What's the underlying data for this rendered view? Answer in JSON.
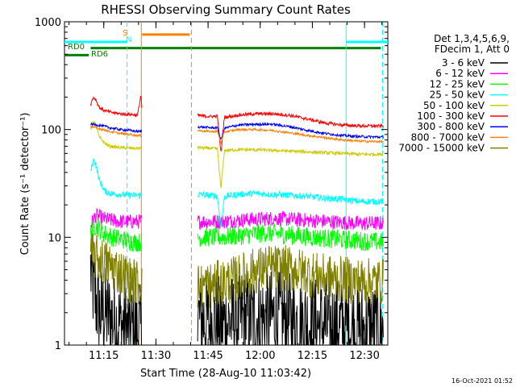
{
  "chart_data": {
    "type": "line",
    "title": "RHESSI Observing Summary Count Rates",
    "xlabel": "Start Time (28-Aug-10 11:03:42)",
    "ylabel": "Count Rate (s⁻¹ detector⁻¹)",
    "ylim": [
      1,
      1000
    ],
    "yscale": "log",
    "xlim_minutes": [
      0,
      93
    ],
    "x_ticks": [
      {
        "min": 11.3,
        "label": "11:15"
      },
      {
        "min": 26.3,
        "label": "11:30"
      },
      {
        "min": 41.3,
        "label": "11:45"
      },
      {
        "min": 56.3,
        "label": "12:00"
      },
      {
        "min": 71.3,
        "label": "12:15"
      },
      {
        "min": 86.3,
        "label": "12:30"
      }
    ],
    "y_ticks": [
      {
        "value": 1,
        "label": "1"
      },
      {
        "value": 10,
        "label": "10"
      },
      {
        "value": 100,
        "label": "100"
      },
      {
        "value": 1000,
        "label": "1000"
      }
    ],
    "legend_header": [
      "Det 1,3,4,5,6,9,",
      "FDecim 1, Att 0"
    ],
    "legend_position": "right",
    "timestamp": "16-Oct-2021 01:52",
    "flag_labels": {
      "rd0": "RD0",
      "rd6": "RD6",
      "saa": "S",
      "night": "N"
    },
    "data_gaps_minutes": [
      [
        22.5,
        38.2
      ]
    ],
    "segments_minutes": [
      [
        7.5,
        22.3
      ],
      [
        38.3,
        91.7
      ]
    ],
    "series": [
      {
        "name": "3 - 6 keV",
        "color": "#000000",
        "noise": 0.45,
        "points": [
          [
            7.5,
            5
          ],
          [
            8.5,
            3
          ],
          [
            10,
            2
          ],
          [
            11.5,
            2
          ],
          [
            13,
            1.8
          ],
          [
            15,
            1.6
          ],
          [
            17,
            1.5
          ],
          [
            19,
            1.4
          ],
          [
            21,
            1.3
          ],
          [
            22.3,
            1.3
          ],
          [
            38.3,
            1.8
          ],
          [
            42,
            1.6
          ],
          [
            46,
            1.6
          ],
          [
            50,
            1.7
          ],
          [
            55,
            1.8
          ],
          [
            60,
            1.8
          ],
          [
            65,
            1.7
          ],
          [
            70,
            1.6
          ],
          [
            75,
            1.5
          ],
          [
            80,
            1.5
          ],
          [
            85,
            1.4
          ],
          [
            91.7,
            1.4
          ]
        ]
      },
      {
        "name": "6 - 12 keV",
        "color": "#ff00ff",
        "noise": 0.07,
        "points": [
          [
            7.5,
            13
          ],
          [
            9,
            16
          ],
          [
            11,
            15
          ],
          [
            13,
            14.5
          ],
          [
            16,
            14
          ],
          [
            19,
            14
          ],
          [
            22.3,
            14
          ],
          [
            38.3,
            14
          ],
          [
            45,
            14
          ],
          [
            52,
            14.5
          ],
          [
            60,
            15
          ],
          [
            68,
            14.5
          ],
          [
            76,
            14
          ],
          [
            84,
            13.5
          ],
          [
            91.7,
            13.5
          ]
        ]
      },
      {
        "name": "12 - 25 keV",
        "color": "#00ff00",
        "noise": 0.09,
        "points": [
          [
            7.5,
            11
          ],
          [
            9,
            13
          ],
          [
            11,
            11
          ],
          [
            14,
            10
          ],
          [
            17,
            9.5
          ],
          [
            20,
            9
          ],
          [
            22.3,
            9
          ],
          [
            38.3,
            10
          ],
          [
            45,
            10
          ],
          [
            52,
            10.5
          ],
          [
            58,
            11
          ],
          [
            65,
            10.5
          ],
          [
            72,
            10
          ],
          [
            80,
            9.5
          ],
          [
            91.7,
            9
          ]
        ]
      },
      {
        "name": "25 - 50 keV",
        "color": "#00ffff",
        "noise": 0.03,
        "points": [
          [
            7.5,
            40
          ],
          [
            8.3,
            52
          ],
          [
            9,
            48
          ],
          [
            10,
            34
          ],
          [
            11.5,
            27
          ],
          [
            13,
            25.5
          ],
          [
            16,
            25
          ],
          [
            19,
            24.5
          ],
          [
            22.3,
            24.5
          ],
          [
            38.3,
            25
          ],
          [
            42,
            24.5
          ],
          [
            44,
            24
          ],
          [
            45,
            12
          ],
          [
            46,
            24
          ],
          [
            50,
            25
          ],
          [
            55,
            25.5
          ],
          [
            60,
            25
          ],
          [
            65,
            24.5
          ],
          [
            70,
            24
          ],
          [
            75,
            23
          ],
          [
            80,
            22.5
          ],
          [
            85,
            21.5
          ],
          [
            91.7,
            21.5
          ]
        ]
      },
      {
        "name": "50 - 100 keV",
        "color": "#cccc00",
        "noise": 0.015,
        "points": [
          [
            7.5,
            100
          ],
          [
            8.3,
            120
          ],
          [
            9,
            110
          ],
          [
            10,
            85
          ],
          [
            11.5,
            75
          ],
          [
            13,
            70
          ],
          [
            16,
            68
          ],
          [
            19,
            67
          ],
          [
            21,
            67
          ],
          [
            22.3,
            67
          ],
          [
            38.3,
            68
          ],
          [
            42,
            67
          ],
          [
            44,
            66
          ],
          [
            45,
            28
          ],
          [
            46,
            64
          ],
          [
            50,
            65
          ],
          [
            55,
            65
          ],
          [
            60,
            64
          ],
          [
            65,
            63
          ],
          [
            70,
            62
          ],
          [
            75,
            61
          ],
          [
            80,
            60
          ],
          [
            85,
            59
          ],
          [
            91.7,
            59
          ]
        ]
      },
      {
        "name": "100 - 300 keV",
        "color": "#ff0000",
        "noise": 0.015,
        "points": [
          [
            7.5,
            170
          ],
          [
            8.3,
            200
          ],
          [
            9,
            190
          ],
          [
            10,
            160
          ],
          [
            11.5,
            150
          ],
          [
            13,
            145
          ],
          [
            16,
            140
          ],
          [
            19,
            138
          ],
          [
            21,
            136
          ],
          [
            22,
            210
          ],
          [
            22.3,
            150
          ],
          [
            38.3,
            135
          ],
          [
            42,
            132
          ],
          [
            44,
            133
          ],
          [
            45,
            60
          ],
          [
            46,
            130
          ],
          [
            50,
            136
          ],
          [
            55,
            140
          ],
          [
            60,
            140
          ],
          [
            65,
            135
          ],
          [
            70,
            125
          ],
          [
            75,
            115
          ],
          [
            80,
            110
          ],
          [
            85,
            108
          ],
          [
            91.7,
            108
          ]
        ]
      },
      {
        "name": "300 - 800 keV",
        "color": "#0000ff",
        "noise": 0.012,
        "points": [
          [
            7.5,
            112
          ],
          [
            9,
            111
          ],
          [
            11,
            108
          ],
          [
            13,
            104
          ],
          [
            16,
            100
          ],
          [
            19,
            98
          ],
          [
            21,
            96
          ],
          [
            22.3,
            96
          ],
          [
            38.3,
            106
          ],
          [
            42,
            104
          ],
          [
            44,
            104
          ],
          [
            45,
            80
          ],
          [
            46,
            103
          ],
          [
            50,
            110
          ],
          [
            55,
            112
          ],
          [
            60,
            112
          ],
          [
            65,
            106
          ],
          [
            70,
            98
          ],
          [
            75,
            92
          ],
          [
            80,
            88
          ],
          [
            85,
            86
          ],
          [
            91.7,
            85
          ]
        ]
      },
      {
        "name": "800 - 7000 keV",
        "color": "#ff8000",
        "noise": 0.01,
        "points": [
          [
            7.5,
            106
          ],
          [
            9,
            104
          ],
          [
            11,
            100
          ],
          [
            13,
            96
          ],
          [
            16,
            92
          ],
          [
            19,
            90
          ],
          [
            21,
            88
          ],
          [
            22.3,
            88
          ],
          [
            38.3,
            98
          ],
          [
            42,
            96
          ],
          [
            44,
            96
          ],
          [
            45,
            75
          ],
          [
            46,
            95
          ],
          [
            50,
            100
          ],
          [
            55,
            100
          ],
          [
            60,
            98
          ],
          [
            65,
            93
          ],
          [
            70,
            88
          ],
          [
            75,
            84
          ],
          [
            80,
            80
          ],
          [
            85,
            78
          ],
          [
            91.7,
            77
          ]
        ]
      },
      {
        "name": "7000 - 15000 keV",
        "color": "#808000",
        "noise": 0.22,
        "points": [
          [
            7.5,
            7
          ],
          [
            9,
            6.5
          ],
          [
            11,
            6
          ],
          [
            13,
            5.5
          ],
          [
            15,
            5
          ],
          [
            17,
            4.5
          ],
          [
            19,
            4
          ],
          [
            21,
            3.8
          ],
          [
            22.3,
            3.8
          ],
          [
            38.3,
            3.5
          ],
          [
            42,
            3.6
          ],
          [
            46,
            3.8
          ],
          [
            50,
            4.2
          ],
          [
            54,
            4.8
          ],
          [
            58,
            5.2
          ],
          [
            62,
            5.2
          ],
          [
            66,
            5
          ],
          [
            70,
            4.6
          ],
          [
            74,
            4.3
          ],
          [
            78,
            4.1
          ],
          [
            82,
            4
          ],
          [
            86,
            3.9
          ],
          [
            91.7,
            3.9
          ]
        ]
      }
    ],
    "flags": [
      {
        "name": "cyan-top-left",
        "color": "#00ffff",
        "y": 650,
        "x": [
          0,
          18
        ]
      },
      {
        "name": "cyan-top-right",
        "color": "#00ffff",
        "y": 650,
        "x": [
          81,
          93
        ]
      },
      {
        "name": "orange-flag",
        "color": "#ff8000",
        "y": 760,
        "x": [
          22.3,
          36
        ]
      },
      {
        "name": "rd0-flag",
        "color": "#008000",
        "y": 570,
        "x": [
          7.5,
          91
        ]
      },
      {
        "name": "rd6-flag",
        "color": "#008000",
        "y": 490,
        "x": [
          0,
          7
        ]
      }
    ],
    "vlines": [
      {
        "name": "cyan-dashed-left",
        "color": "#00ffff",
        "dash": true,
        "x": 18
      },
      {
        "name": "orange-solid-left",
        "color": "#ff8000",
        "dash": false,
        "x": 22.1
      },
      {
        "name": "orange-dashed-right",
        "color": "#ff8000",
        "dash": true,
        "x": 36.5
      },
      {
        "name": "cyan-solid-right",
        "color": "#00ffff",
        "dash": false,
        "x": 81
      },
      {
        "name": "cyan-dashed-right",
        "color": "#00ffff",
        "dash": true,
        "x": 91.5
      }
    ]
  }
}
